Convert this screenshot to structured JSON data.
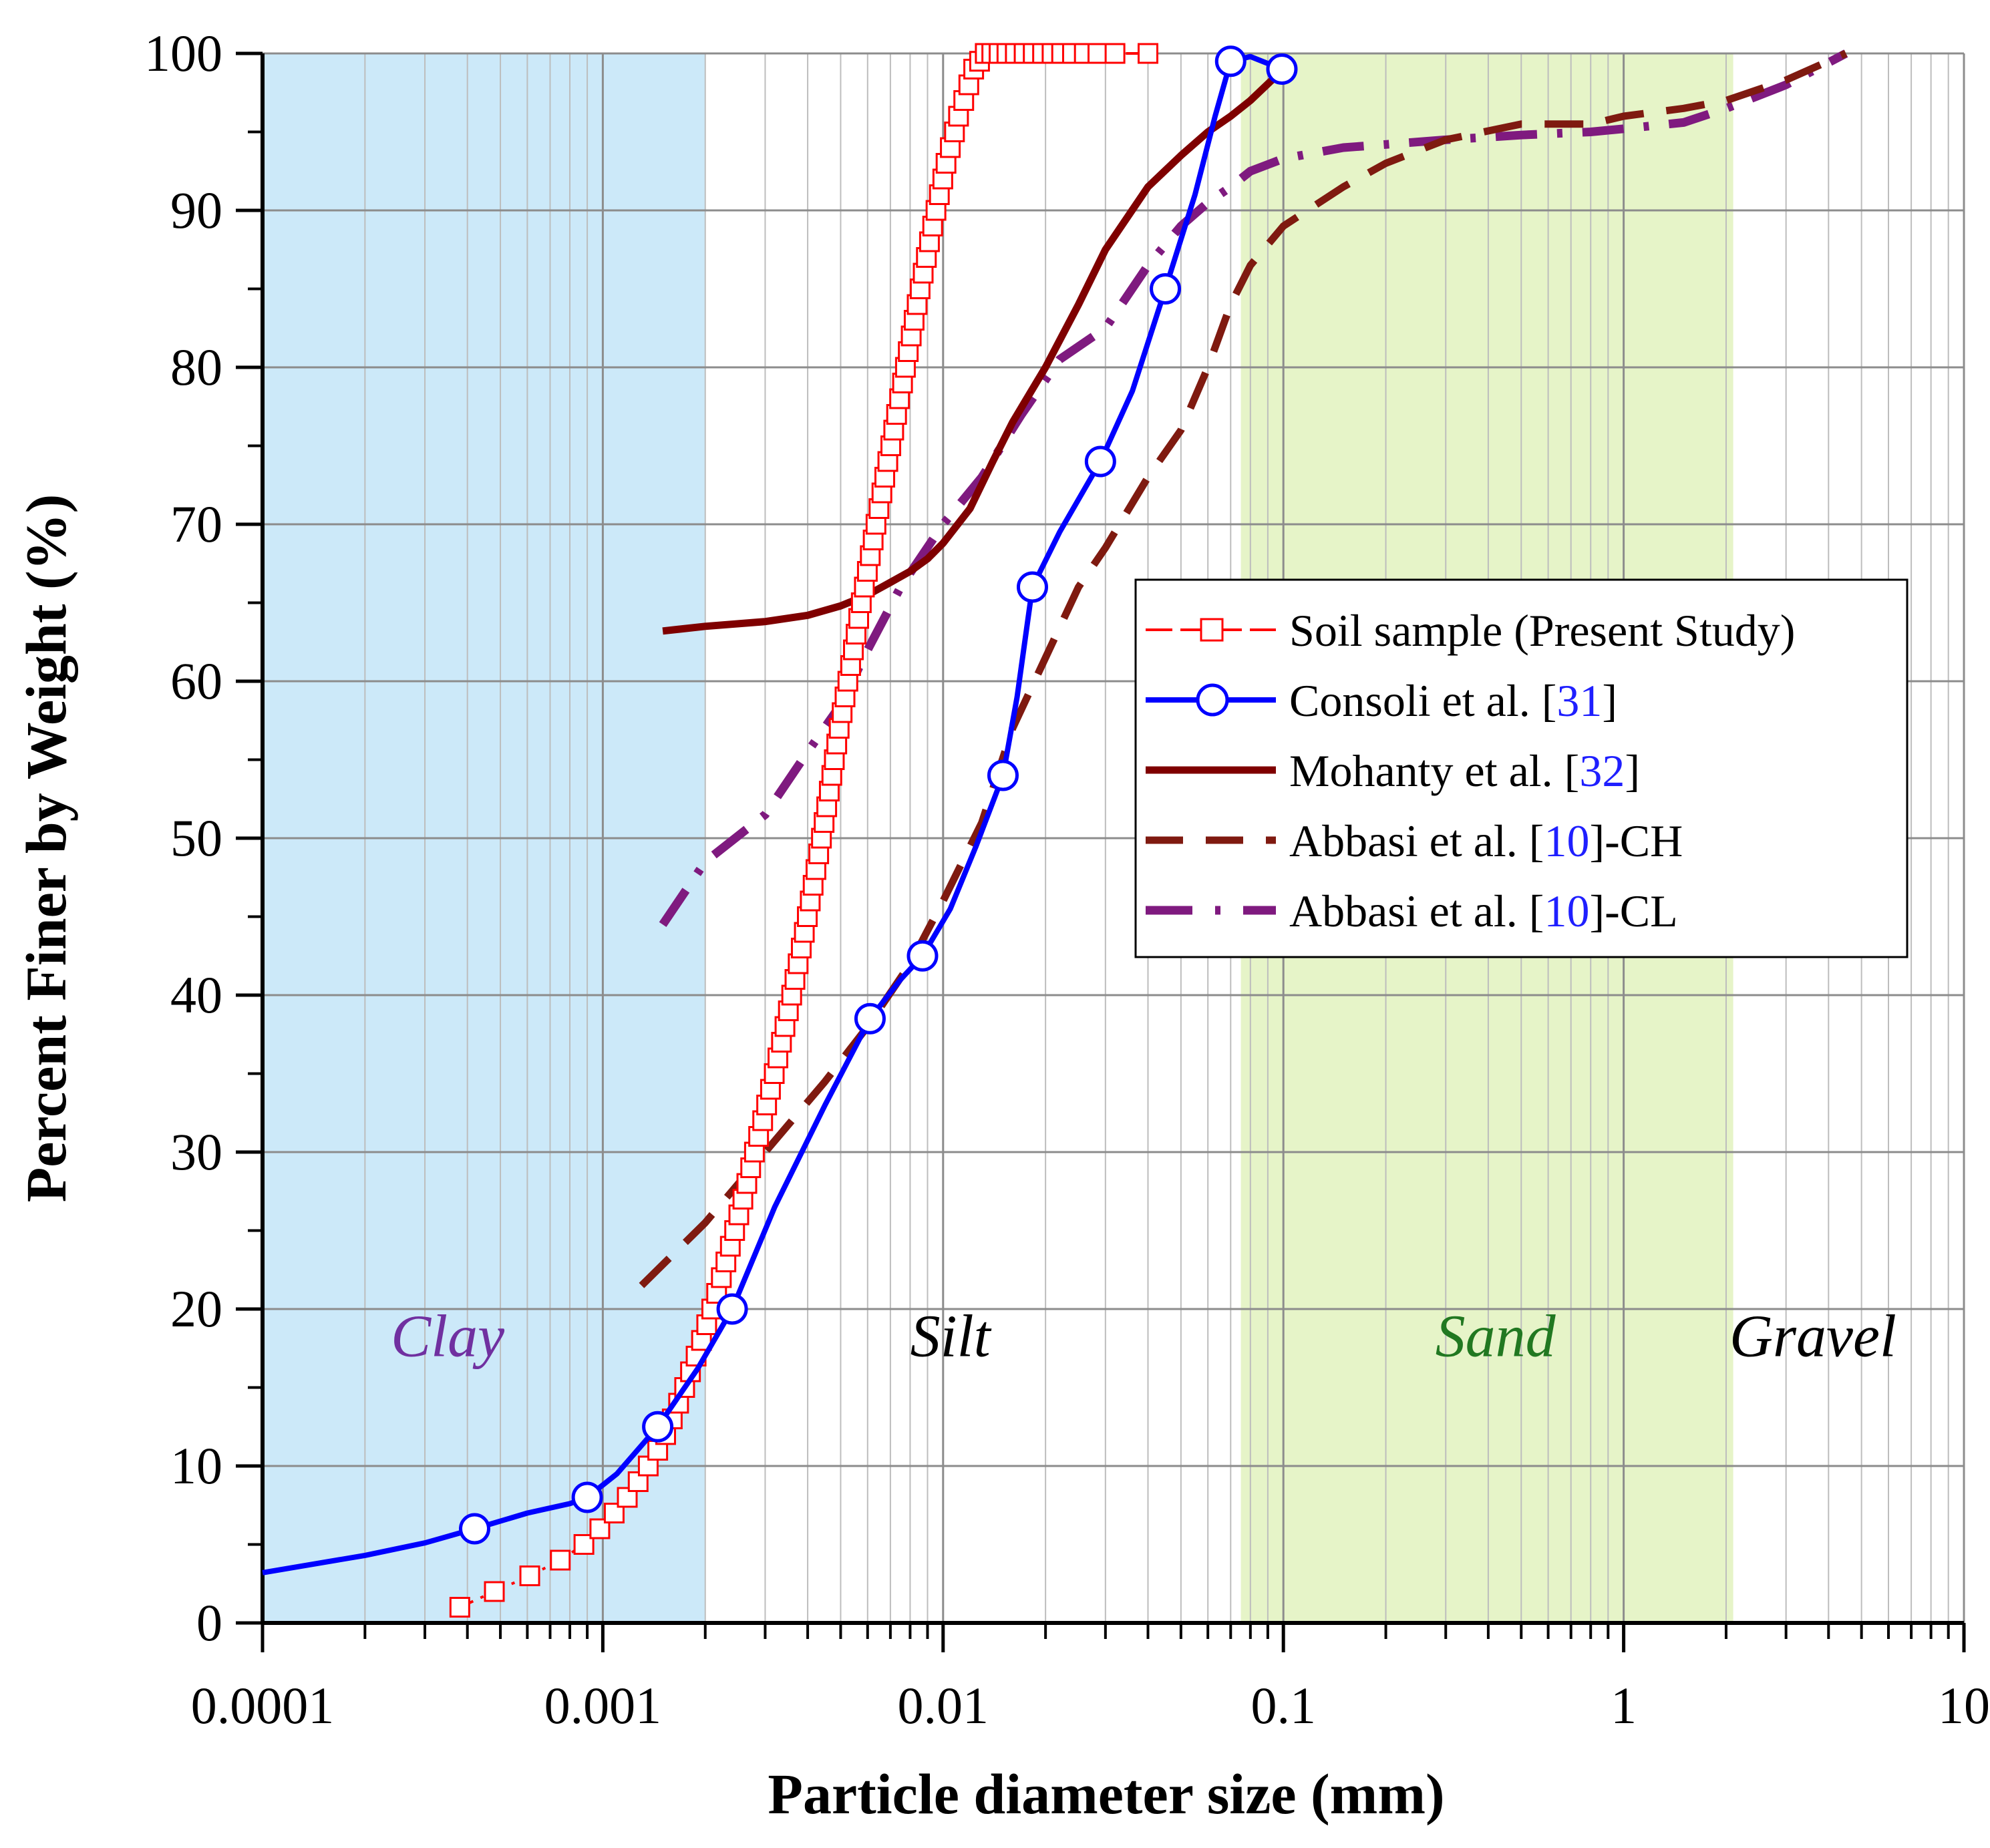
{
  "chart_data": {
    "type": "line",
    "title": "",
    "xlabel": "Particle diameter size (mm)",
    "ylabel": "Percent Finer by Weight (%)",
    "xscale": "log",
    "xlim": [
      0.0001,
      10
    ],
    "ylim": [
      0,
      100
    ],
    "grid": true,
    "legend_position": "center-right",
    "x_tick_labels": [
      "0.0001",
      "0.001",
      "0.01",
      "0.1",
      "1",
      "10"
    ],
    "x_tick_values": [
      0.0001,
      0.001,
      0.01,
      0.1,
      1,
      10
    ],
    "y_tick_labels": [
      "0",
      "10",
      "20",
      "30",
      "40",
      "50",
      "60",
      "70",
      "80",
      "90",
      "100"
    ],
    "y_tick_values": [
      0,
      10,
      20,
      30,
      40,
      50,
      60,
      70,
      80,
      90,
      100
    ],
    "regions": [
      {
        "name": "Clay",
        "label": "Clay",
        "x_start": 0.0001,
        "x_end": 0.002,
        "fill": "#cce9f9",
        "label_color": "#7030a0",
        "label_x": 0.00035,
        "label_y": 17
      },
      {
        "name": "Silt",
        "label": "Silt",
        "x_start": 0.002,
        "x_end": 0.075,
        "fill": "#ffffff",
        "label_color": "#000000",
        "label_x": 0.0105,
        "label_y": 17
      },
      {
        "name": "Sand",
        "label": "Sand",
        "x_start": 0.075,
        "x_end": 2.1,
        "fill": "#e6f4c8",
        "label_color": "#217821",
        "label_x": 0.42,
        "label_y": 17
      },
      {
        "name": "Gravel",
        "label": "Gravel",
        "x_start": 2.1,
        "x_end": 10,
        "fill": "#ffffff",
        "label_color": "#000000",
        "label_x": 3.6,
        "label_y": 17
      }
    ],
    "series": [
      {
        "name": "Soil sample (Present Study)",
        "legend_text": "Soil sample (Present Study)",
        "legend_ref": "",
        "legend_suffix": "",
        "color": "#ff0000",
        "style": "dash-dot-thin",
        "marker": "square",
        "x": [
          0.00038,
          0.00048,
          0.00061,
          0.00075,
          0.00088,
          0.00098,
          0.00108,
          0.00118,
          0.00127,
          0.00136,
          0.00145,
          0.00153,
          0.0016,
          0.00167,
          0.00174,
          0.00181,
          0.00188,
          0.00195,
          0.00202,
          0.00209,
          0.00216,
          0.00223,
          0.0023,
          0.00237,
          0.00244,
          0.00251,
          0.00258,
          0.00265,
          0.00272,
          0.00279,
          0.00287,
          0.00295,
          0.00303,
          0.00311,
          0.00319,
          0.00327,
          0.00335,
          0.00343,
          0.00351,
          0.00359,
          0.00367,
          0.00375,
          0.00383,
          0.00391,
          0.00399,
          0.00407,
          0.00415,
          0.00423,
          0.00431,
          0.00439,
          0.00447,
          0.00455,
          0.00463,
          0.00471,
          0.00479,
          0.00487,
          0.00495,
          0.00505,
          0.00515,
          0.00525,
          0.00535,
          0.00545,
          0.00555,
          0.00565,
          0.00575,
          0.00587,
          0.00599,
          0.00611,
          0.00623,
          0.00635,
          0.00648,
          0.00661,
          0.00674,
          0.00688,
          0.00702,
          0.00716,
          0.0073,
          0.00745,
          0.0076,
          0.00775,
          0.0079,
          0.00806,
          0.00822,
          0.00839,
          0.00856,
          0.00874,
          0.00893,
          0.00912,
          0.00932,
          0.00953,
          0.00975,
          0.00998,
          0.0102,
          0.0105,
          0.0108,
          0.0111,
          0.0115,
          0.0119,
          0.0123,
          0.0128,
          0.0133,
          0.0139,
          0.0146,
          0.0154,
          0.0163,
          0.0173,
          0.0184,
          0.0196,
          0.0209,
          0.0223,
          0.024,
          0.026,
          0.0285,
          0.032,
          0.04
        ],
        "y": [
          1,
          2,
          3,
          4,
          5,
          6,
          7,
          8,
          9,
          10,
          11,
          12,
          13,
          14,
          15,
          16,
          17,
          18,
          19,
          20,
          21,
          22,
          23,
          24,
          25,
          26,
          27,
          28,
          29,
          30,
          31,
          32,
          33,
          34,
          35,
          36,
          37,
          38,
          39,
          40,
          41,
          42,
          43,
          44,
          45,
          46,
          47,
          48,
          49,
          50,
          51,
          52,
          53,
          54,
          55,
          56,
          57,
          58,
          59,
          60,
          61,
          62,
          63,
          64,
          65,
          66,
          67,
          68,
          69,
          70,
          71,
          72,
          73,
          74,
          75,
          76,
          77,
          78,
          79,
          80,
          81,
          82,
          83,
          84,
          85,
          86,
          87,
          88,
          89,
          90,
          91,
          92,
          93,
          94,
          95,
          96,
          97,
          98,
          99,
          99.5,
          100,
          100,
          100,
          100,
          100,
          100,
          100,
          100,
          100,
          100,
          100,
          100,
          100,
          100,
          100
        ]
      },
      {
        "name": "Consoli et al. [31]",
        "legend_text": "Consoli et al. [",
        "legend_ref": "31",
        "legend_suffix": "]",
        "color": "#0000ff",
        "style": "solid",
        "marker": "circle",
        "x": [
          0.0001,
          0.00042,
          0.0009,
          0.00145,
          0.0024,
          0.0061,
          0.0087,
          0.015,
          0.0183,
          0.029,
          0.045,
          0.07,
          0.099
        ],
        "y": [
          3.2,
          6,
          8,
          12.5,
          20,
          38.5,
          42.5,
          54,
          66,
          74,
          85,
          99.5,
          99
        ],
        "curve_x": [
          0.0001,
          0.0002,
          0.0003,
          0.00042,
          0.0006,
          0.0008,
          0.0009,
          0.0011,
          0.00145,
          0.0019,
          0.0024,
          0.0032,
          0.0045,
          0.0061,
          0.0075,
          0.0087,
          0.0105,
          0.0125,
          0.015,
          0.0165,
          0.0183,
          0.022,
          0.029,
          0.036,
          0.045,
          0.055,
          0.063,
          0.07,
          0.08,
          0.099
        ],
        "curve_y": [
          3.2,
          4.3,
          5.1,
          6,
          7,
          7.6,
          8,
          9.5,
          12.5,
          16.2,
          20,
          26.5,
          33,
          38.5,
          41,
          42.5,
          45.5,
          49.5,
          54,
          59,
          66,
          69.5,
          74,
          78.5,
          85,
          91,
          96,
          99.5,
          99.8,
          99
        ]
      },
      {
        "name": "Mohanty et al. [32]",
        "legend_text": "Mohanty et al. [",
        "legend_ref": "32",
        "legend_suffix": "]",
        "color": "#7f0000",
        "style": "solid-thick",
        "marker": "none",
        "x": [
          0.0015,
          0.002,
          0.003,
          0.004,
          0.005,
          0.006,
          0.007,
          0.008,
          0.009,
          0.01,
          0.012,
          0.014,
          0.016,
          0.02,
          0.025,
          0.03,
          0.04,
          0.05,
          0.06,
          0.07,
          0.08,
          0.1
        ],
        "y": [
          63.2,
          63.5,
          63.8,
          64.2,
          64.8,
          65.5,
          66.3,
          67,
          67.8,
          68.8,
          71,
          74,
          76.5,
          80,
          84,
          87.5,
          91.5,
          93.5,
          95,
          96,
          97,
          99
        ]
      },
      {
        "name": "Abbasi et al. [10]-CH",
        "legend_text": "Abbasi et al. [",
        "legend_ref": "10",
        "legend_suffix": "]-CH",
        "color": "#7f1a10",
        "style": "dashed",
        "marker": "none",
        "x": [
          0.0013,
          0.002,
          0.003,
          0.0045,
          0.006,
          0.008,
          0.01,
          0.013,
          0.016,
          0.02,
          0.025,
          0.03,
          0.04,
          0.05,
          0.06,
          0.07,
          0.08,
          0.1,
          0.15,
          0.2,
          0.3,
          0.5,
          0.8,
          1,
          1.5,
          2,
          3,
          4.5
        ],
        "y": [
          21.5,
          25.5,
          30,
          34.5,
          38,
          42,
          46,
          51,
          57,
          61.5,
          66,
          68.5,
          73,
          76,
          80,
          84,
          86.5,
          89,
          91.5,
          93,
          94.5,
          95.5,
          95.5,
          96,
          96.5,
          97,
          98.3,
          100
        ]
      },
      {
        "name": "Abbasi et al. [10]-CL",
        "legend_text": "Abbasi et al. [",
        "legend_ref": "10",
        "legend_suffix": "]-CL",
        "color": "#7f1a7f",
        "style": "dash-dot",
        "marker": "none",
        "x": [
          0.0015,
          0.002,
          0.003,
          0.004,
          0.005,
          0.006,
          0.0075,
          0.01,
          0.013,
          0.017,
          0.022,
          0.03,
          0.04,
          0.05,
          0.06,
          0.07,
          0.08,
          0.1,
          0.15,
          0.2,
          0.3,
          0.5,
          0.8,
          1,
          1.5,
          2,
          3,
          4.5
        ],
        "y": [
          44.5,
          48.5,
          51.5,
          55.5,
          58.5,
          62,
          66,
          70,
          73,
          77,
          80.5,
          82.5,
          86.5,
          89,
          90.5,
          91.5,
          92.5,
          93.3,
          94,
          94.2,
          94.5,
          94.8,
          95,
          95.2,
          95.6,
          96.5,
          98,
          100
        ]
      }
    ]
  },
  "colors": {
    "grid_major": "#8c8c8c",
    "grid_minor": "#bdbdbd",
    "axis": "#000000",
    "legend_ref": "#1f1fff"
  }
}
